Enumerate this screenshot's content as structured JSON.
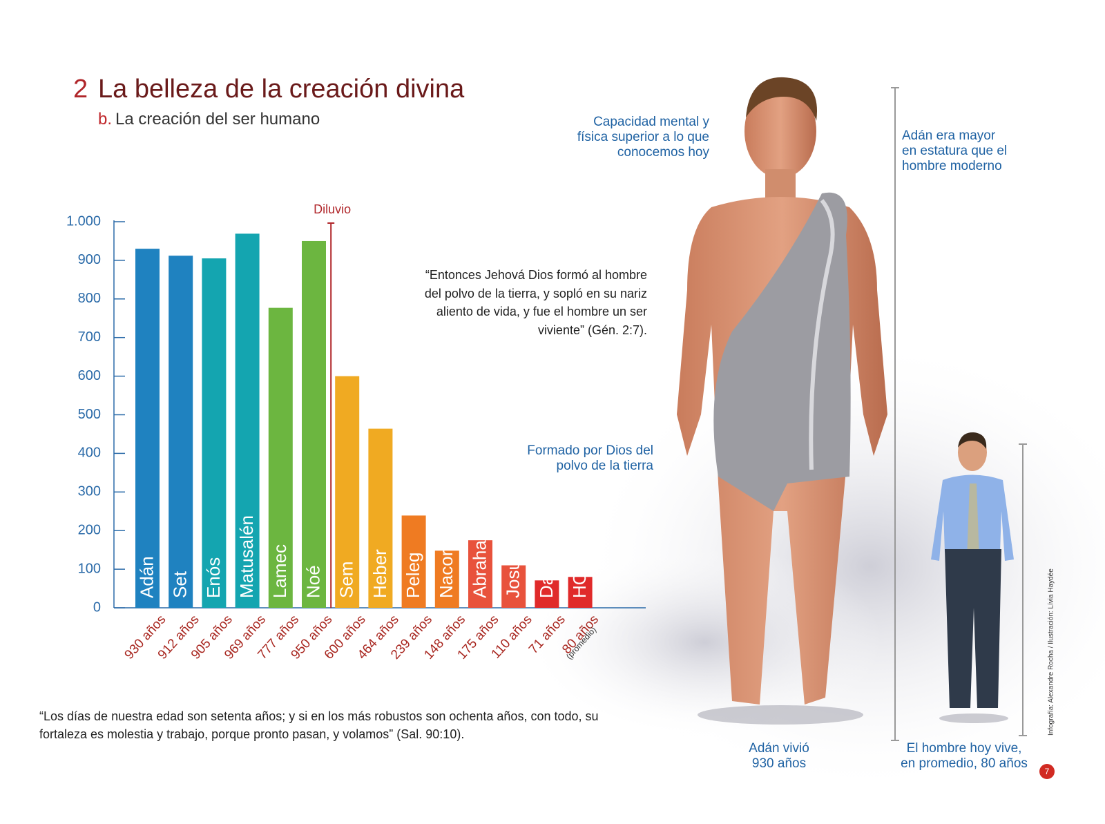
{
  "header": {
    "number": "2",
    "title": "La belleza de la creación divina",
    "sub_letter": "b.",
    "subtitle": "La creación del ser humano"
  },
  "chart_data": {
    "type": "bar",
    "categories": [
      "Adán",
      "Set",
      "Enós",
      "Matusalén",
      "Lamec",
      "Noé",
      "Sem",
      "Heber",
      "Peleg",
      "Nacor",
      "Abraham",
      "Josué",
      "David",
      "HOY"
    ],
    "values": [
      930,
      912,
      905,
      969,
      777,
      950,
      600,
      464,
      239,
      148,
      175,
      110,
      71,
      80
    ],
    "value_labels": [
      "930 años",
      "912 años",
      "905 años",
      "969 años",
      "777 años",
      "950 años",
      "600 años",
      "464 años",
      "239 años",
      "148 años",
      "175 años",
      "110 años",
      "71 años",
      "80 años"
    ],
    "colors": [
      "#1f82c0",
      "#1f82c0",
      "#14a5b0",
      "#14a5b0",
      "#6cb640",
      "#6cb640",
      "#f0aa22",
      "#f0aa22",
      "#ef7b22",
      "#ef7b22",
      "#e8523c",
      "#e8523c",
      "#e02a2a",
      "#e02a2a"
    ],
    "ylim": [
      0,
      1000
    ],
    "yticks": [
      0,
      100,
      200,
      300,
      400,
      500,
      600,
      700,
      800,
      900,
      {
        "value": 1000,
        "label": "1.000"
      }
    ],
    "flood_label": "Diluvio",
    "footnote": "(promedio)"
  },
  "quote_genesis": [
    "“Entonces Jehová Dios formó al hombre",
    "del polvo de la tierra, y sopló en su nariz",
    "aliento de vida, y fue el hombre un ser",
    "viviente” (Gén. 2:7)."
  ],
  "quote_psalm": [
    "“Los días de nuestra edad son setenta años; y si en los más robustos son ochenta años, con todo, su",
    "fortaleza es molestia y trabajo, porque pronto pasan, y volamos” (Sal. 90:10)."
  ],
  "callout_mind": [
    "Capacidad mental y",
    "física superior a lo que",
    "conocemos hoy"
  ],
  "callout_height": [
    "Adán era mayor",
    "en estatura que el",
    "hombre moderno"
  ],
  "callout_dust": [
    "Formado por Dios del",
    "polvo de la tierra"
  ],
  "caption_adam": [
    "Adán vivió",
    "930 años"
  ],
  "caption_today": [
    "El hombre hoy vive,",
    "en promedio, 80 años"
  ],
  "credit": "Infografía: Alexandre Rocha / Ilustración: Lívia Haydée",
  "page_number": "7"
}
